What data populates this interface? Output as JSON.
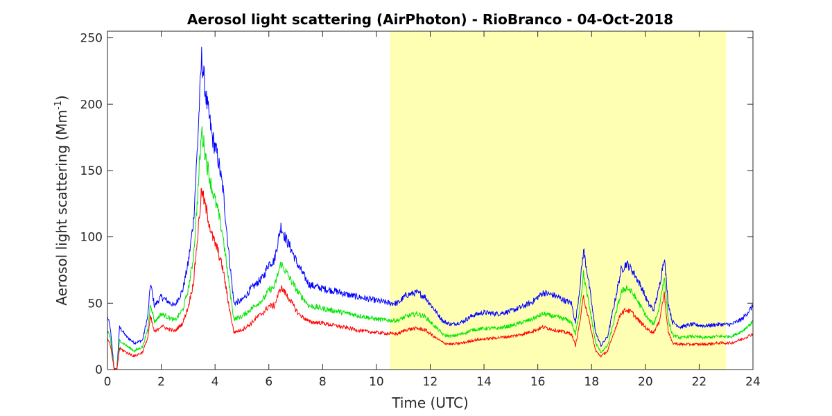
{
  "chart_data": {
    "type": "line",
    "title": "Aerosol light scattering (AirPhoton) - RioBranco - 04-Oct-2018",
    "xlabel": "Time (UTC)",
    "ylabel_main": "Aerosol light scattering (Mm",
    "ylabel_sup": "-1",
    "ylabel_close": ")",
    "xlim": [
      0,
      24
    ],
    "ylim": [
      0,
      255
    ],
    "xticks": [
      0,
      2,
      4,
      6,
      8,
      10,
      12,
      14,
      16,
      18,
      20,
      22,
      24
    ],
    "yticks": [
      0,
      50,
      100,
      150,
      200,
      250
    ],
    "grid": false,
    "highlight": {
      "x_start": 10.5,
      "x_end": 23.0,
      "color": "#ffffb4"
    },
    "series": [
      {
        "color": "#0000ff",
        "x": [
          0.0,
          0.1,
          0.25,
          0.35,
          0.45,
          0.7,
          1.0,
          1.3,
          1.5,
          1.6,
          1.75,
          2.0,
          2.2,
          2.5,
          2.8,
          3.0,
          3.2,
          3.35,
          3.5,
          3.7,
          3.9,
          4.1,
          4.3,
          4.5,
          4.7,
          5.0,
          5.3,
          5.6,
          5.8,
          6.0,
          6.2,
          6.45,
          6.6,
          6.8,
          7.1,
          7.5,
          8.0,
          8.5,
          9.0,
          9.5,
          10.0,
          10.5,
          10.8,
          11.1,
          11.5,
          11.8,
          12.2,
          12.5,
          12.8,
          13.2,
          13.6,
          14.0,
          14.5,
          15.0,
          15.5,
          15.8,
          16.2,
          16.6,
          17.0,
          17.25,
          17.4,
          17.55,
          17.7,
          17.85,
          18.0,
          18.15,
          18.35,
          18.6,
          18.9,
          19.1,
          19.3,
          19.5,
          19.7,
          19.9,
          20.1,
          20.3,
          20.5,
          20.7,
          20.85,
          21.0,
          21.3,
          21.7,
          22.2,
          22.7,
          23.2,
          23.6,
          24.0
        ],
        "values": [
          40,
          32,
          0,
          0,
          32,
          25,
          20,
          22,
          40,
          65,
          48,
          55,
          52,
          48,
          60,
          80,
          112,
          170,
          235,
          200,
          175,
          160,
          135,
          90,
          50,
          52,
          60,
          66,
          70,
          80,
          82,
          108,
          100,
          92,
          78,
          64,
          61,
          59,
          56,
          54,
          52,
          50,
          50,
          56,
          58,
          55,
          44,
          36,
          34,
          36,
          41,
          43,
          42,
          44,
          48,
          51,
          58,
          56,
          52,
          50,
          35,
          60,
          90,
          72,
          50,
          28,
          18,
          25,
          55,
          75,
          80,
          75,
          68,
          60,
          50,
          45,
          60,
          85,
          50,
          36,
          32,
          34,
          33,
          34,
          34,
          38,
          48
        ]
      },
      {
        "color": "#00e400",
        "x": [
          0.0,
          0.1,
          0.25,
          0.35,
          0.45,
          0.7,
          1.0,
          1.3,
          1.5,
          1.6,
          1.75,
          2.0,
          2.2,
          2.5,
          2.8,
          3.0,
          3.2,
          3.35,
          3.5,
          3.7,
          3.9,
          4.1,
          4.3,
          4.5,
          4.7,
          5.0,
          5.3,
          5.6,
          5.8,
          6.0,
          6.2,
          6.45,
          6.6,
          6.8,
          7.1,
          7.5,
          8.0,
          8.5,
          9.0,
          9.5,
          10.0,
          10.5,
          10.8,
          11.1,
          11.5,
          11.8,
          12.2,
          12.5,
          12.8,
          13.2,
          13.6,
          14.0,
          14.5,
          15.0,
          15.5,
          15.8,
          16.2,
          16.6,
          17.0,
          17.25,
          17.4,
          17.55,
          17.7,
          17.85,
          18.0,
          18.15,
          18.35,
          18.6,
          18.9,
          19.1,
          19.3,
          19.5,
          19.7,
          19.9,
          20.1,
          20.3,
          20.5,
          20.7,
          20.85,
          21.0,
          21.3,
          21.7,
          22.2,
          22.7,
          23.2,
          23.6,
          24.0
        ],
        "values": [
          30,
          24,
          0,
          0,
          22,
          18,
          14,
          17,
          30,
          50,
          36,
          42,
          40,
          37,
          45,
          60,
          85,
          130,
          180,
          155,
          135,
          120,
          100,
          68,
          38,
          40,
          45,
          50,
          53,
          60,
          62,
          80,
          75,
          68,
          58,
          48,
          46,
          44,
          42,
          40,
          38,
          37,
          37,
          40,
          42,
          40,
          32,
          26,
          25,
          27,
          30,
          31,
          31,
          33,
          36,
          38,
          42,
          40,
          38,
          36,
          26,
          45,
          72,
          55,
          38,
          20,
          13,
          18,
          42,
          58,
          62,
          58,
          52,
          45,
          38,
          34,
          45,
          70,
          38,
          26,
          24,
          25,
          24,
          25,
          25,
          29,
          36
        ]
      },
      {
        "color": "#ff0000",
        "x": [
          0.0,
          0.1,
          0.25,
          0.35,
          0.45,
          0.7,
          1.0,
          1.3,
          1.5,
          1.6,
          1.75,
          2.0,
          2.2,
          2.5,
          2.8,
          3.0,
          3.2,
          3.35,
          3.5,
          3.7,
          3.9,
          4.1,
          4.3,
          4.5,
          4.7,
          5.0,
          5.3,
          5.6,
          5.8,
          6.0,
          6.2,
          6.45,
          6.6,
          6.8,
          7.1,
          7.5,
          8.0,
          8.5,
          9.0,
          9.5,
          10.0,
          10.5,
          10.8,
          11.1,
          11.5,
          11.8,
          12.2,
          12.5,
          12.8,
          13.2,
          13.6,
          14.0,
          14.5,
          15.0,
          15.5,
          15.8,
          16.2,
          16.6,
          17.0,
          17.25,
          17.4,
          17.55,
          17.7,
          17.85,
          18.0,
          18.15,
          18.35,
          18.6,
          18.9,
          19.1,
          19.3,
          19.5,
          19.7,
          19.9,
          20.1,
          20.3,
          20.5,
          20.7,
          20.85,
          21.0,
          21.3,
          21.7,
          22.2,
          22.7,
          23.2,
          23.6,
          24.0
        ],
        "values": [
          24,
          19,
          0,
          0,
          16,
          13,
          10,
          13,
          24,
          40,
          28,
          33,
          31,
          29,
          35,
          47,
          66,
          100,
          135,
          118,
          100,
          90,
          75,
          50,
          28,
          30,
          34,
          40,
          43,
          48,
          48,
          62,
          58,
          52,
          42,
          36,
          35,
          33,
          31,
          29,
          28,
          27,
          27,
          30,
          31,
          30,
          24,
          20,
          19,
          20,
          22,
          23,
          24,
          25,
          27,
          29,
          32,
          30,
          28,
          27,
          18,
          34,
          55,
          42,
          28,
          14,
          10,
          14,
          32,
          43,
          45,
          43,
          38,
          34,
          30,
          28,
          35,
          57,
          29,
          20,
          19,
          19,
          19,
          20,
          20,
          23,
          27
        ]
      }
    ]
  }
}
